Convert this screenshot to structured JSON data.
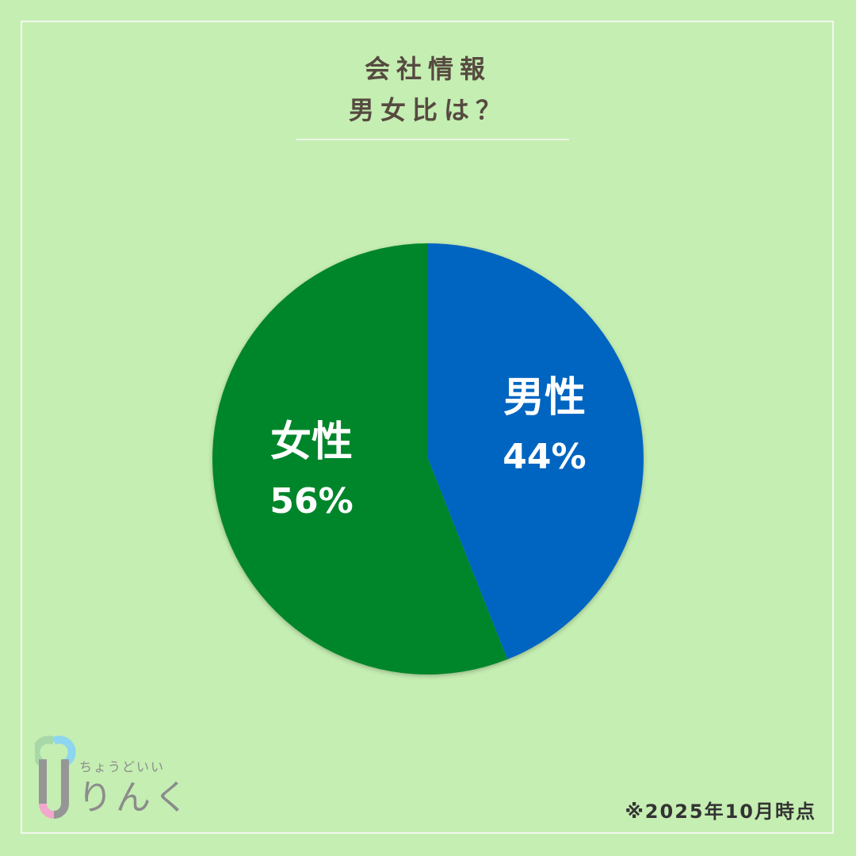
{
  "header": {
    "line1": "会社情報",
    "line2": "男女比は？"
  },
  "chart_data": {
    "type": "pie",
    "slices": [
      {
        "label": "男性",
        "value": 44,
        "value_label": "44%",
        "color": "#0565c0"
      },
      {
        "label": "女性",
        "value": 56,
        "value_label": "56%",
        "color": "#01862a"
      }
    ],
    "start": "12 o'clock",
    "direction": "clockwise"
  },
  "footer": {
    "note": "※2025年10月時点"
  },
  "logo": {
    "sub": "ちょうどいい",
    "main": "りんく"
  },
  "colors": {
    "background": "#c5eeb2",
    "title": "#564a40"
  }
}
